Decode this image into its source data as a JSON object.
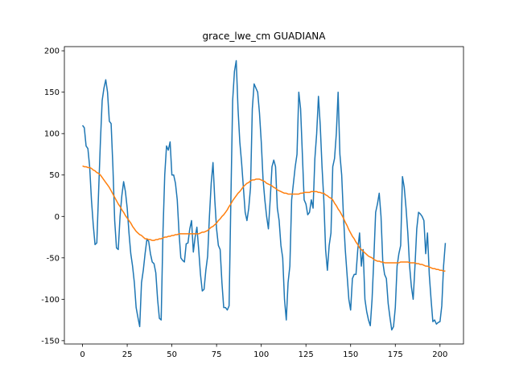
{
  "chart_data": {
    "type": "line",
    "title": "grace_lwe_cm GUADIANA",
    "x": [
      0,
      1,
      2,
      3,
      4,
      5,
      6,
      7,
      8,
      9,
      10,
      11,
      12,
      13,
      14,
      15,
      16,
      17,
      18,
      19,
      20,
      21,
      22,
      23,
      24,
      25,
      26,
      27,
      28,
      29,
      30,
      31,
      32,
      33,
      34,
      35,
      36,
      37,
      38,
      39,
      40,
      41,
      42,
      43,
      44,
      45,
      46,
      47,
      48,
      49,
      50,
      51,
      52,
      53,
      54,
      55,
      56,
      57,
      58,
      59,
      60,
      61,
      62,
      63,
      64,
      65,
      66,
      67,
      68,
      69,
      70,
      71,
      72,
      73,
      74,
      75,
      76,
      77,
      78,
      79,
      80,
      81,
      82,
      83,
      84,
      85,
      86,
      87,
      88,
      89,
      90,
      91,
      92,
      93,
      94,
      95,
      96,
      97,
      98,
      99,
      100,
      101,
      102,
      103,
      104,
      105,
      106,
      107,
      108,
      109,
      110,
      111,
      112,
      113,
      114,
      115,
      116,
      117,
      118,
      119,
      120,
      121,
      122,
      123,
      124,
      125,
      126,
      127,
      128,
      129,
      130,
      131,
      132,
      133,
      134,
      135,
      136,
      137,
      138,
      139,
      140,
      141,
      142,
      143,
      144,
      145,
      146,
      147,
      148,
      149,
      150,
      151,
      152,
      153,
      154,
      155,
      156,
      157,
      158,
      159,
      160,
      161,
      162,
      163,
      164,
      165,
      166,
      167,
      168,
      169,
      170,
      171,
      172,
      173,
      174,
      175,
      176,
      177,
      178,
      179,
      180,
      181,
      182,
      183,
      184,
      185,
      186,
      187,
      188,
      189,
      190,
      191,
      192,
      193,
      194,
      195,
      196,
      197,
      198,
      199,
      200,
      201,
      202,
      203
    ],
    "series": [
      {
        "color": "#1f77b4",
        "values": [
          110,
          107,
          85,
          82,
          60,
          20,
          -10,
          -34,
          -32,
          30,
          90,
          140,
          155,
          165,
          150,
          115,
          112,
          60,
          -5,
          -38,
          -40,
          0,
          25,
          42,
          30,
          10,
          -20,
          -45,
          -60,
          -80,
          -110,
          -122,
          -133,
          -80,
          -65,
          -45,
          -28,
          -30,
          -45,
          -55,
          -57,
          -68,
          -100,
          -123,
          -125,
          -20,
          50,
          85,
          80,
          90,
          50,
          50,
          40,
          20,
          -20,
          -50,
          -53,
          -55,
          -33,
          -32,
          -15,
          -5,
          -43,
          -25,
          -13,
          -40,
          -70,
          -90,
          -88,
          -65,
          -48,
          0,
          40,
          65,
          20,
          -15,
          -35,
          -40,
          -80,
          -110,
          -110,
          -113,
          -108,
          20,
          140,
          175,
          188,
          130,
          90,
          65,
          35,
          5,
          -5,
          10,
          35,
          130,
          160,
          155,
          150,
          125,
          90,
          45,
          20,
          0,
          -15,
          20,
          60,
          68,
          60,
          10,
          -5,
          -35,
          -50,
          -100,
          -125,
          -80,
          -60,
          20,
          40,
          60,
          75,
          150,
          130,
          75,
          20,
          15,
          2,
          5,
          20,
          10,
          70,
          100,
          145,
          110,
          60,
          20,
          -40,
          -65,
          -35,
          -20,
          60,
          70,
          100,
          150,
          75,
          50,
          0,
          -40,
          -70,
          -100,
          -113,
          -75,
          -70,
          -70,
          -40,
          -20,
          -60,
          -40,
          -100,
          -115,
          -125,
          -132,
          -100,
          -50,
          5,
          15,
          28,
          0,
          -55,
          -70,
          -75,
          -105,
          -122,
          -137,
          -133,
          -110,
          -60,
          -45,
          -35,
          48,
          35,
          10,
          -20,
          -60,
          -85,
          -100,
          -60,
          -15,
          5,
          3,
          0,
          -5,
          -45,
          -20,
          -70,
          -100,
          -127,
          -125,
          -130,
          -128,
          -127,
          -108,
          -60,
          -32
        ]
      },
      {
        "color": "#ff7f0e",
        "values": [
          61,
          60,
          60,
          59,
          59,
          58,
          56,
          55,
          53,
          52,
          50,
          47,
          44,
          41,
          38,
          35,
          31,
          27,
          23,
          19,
          15,
          12,
          8,
          5,
          1,
          -2,
          -5,
          -8,
          -12,
          -15,
          -18,
          -20,
          -22,
          -23,
          -25,
          -27,
          -27,
          -28,
          -28,
          -29,
          -29,
          -28,
          -28,
          -27,
          -27,
          -26,
          -25,
          -25,
          -24,
          -24,
          -23,
          -23,
          -22,
          -22,
          -21,
          -21,
          -21,
          -21,
          -21,
          -21,
          -21,
          -21,
          -21,
          -21,
          -21,
          -21,
          -20,
          -19,
          -19,
          -18,
          -17,
          -15,
          -13,
          -12,
          -10,
          -8,
          -5,
          -3,
          0,
          2,
          5,
          8,
          12,
          15,
          19,
          22,
          25,
          28,
          30,
          33,
          36,
          38,
          40,
          41,
          43,
          44,
          44,
          45,
          45,
          45,
          44,
          43,
          42,
          40,
          39,
          38,
          37,
          35,
          34,
          32,
          31,
          30,
          29,
          28,
          28,
          27,
          27,
          27,
          27,
          27,
          27,
          27,
          28,
          28,
          29,
          29,
          29,
          29,
          30,
          30,
          30,
          30,
          29,
          29,
          28,
          28,
          26,
          25,
          23,
          22,
          20,
          16,
          13,
          9,
          6,
          2,
          -2,
          -7,
          -11,
          -16,
          -20,
          -24,
          -27,
          -31,
          -34,
          -38,
          -40,
          -42,
          -44,
          -46,
          -48,
          -49,
          -50,
          -52,
          -53,
          -54,
          -54,
          -55,
          -55,
          -56,
          -56,
          -56,
          -56,
          -56,
          -56,
          -56,
          -56,
          -56,
          -55,
          -55,
          -55,
          -55,
          -55,
          -56,
          -56,
          -56,
          -56,
          -57,
          -57,
          -58,
          -58,
          -59,
          -60,
          -60,
          -61,
          -62,
          -63,
          -63,
          -64,
          -64,
          -65,
          -65,
          -66,
          -66
        ]
      }
    ],
    "xlim": [
      -10.15,
      213.15
    ],
    "xticks": [
      0,
      25,
      50,
      75,
      100,
      125,
      150,
      175,
      200
    ],
    "ylim": [
      -154,
      205
    ],
    "yticks": [
      -150,
      -100,
      -50,
      0,
      50,
      100,
      150,
      200
    ]
  }
}
